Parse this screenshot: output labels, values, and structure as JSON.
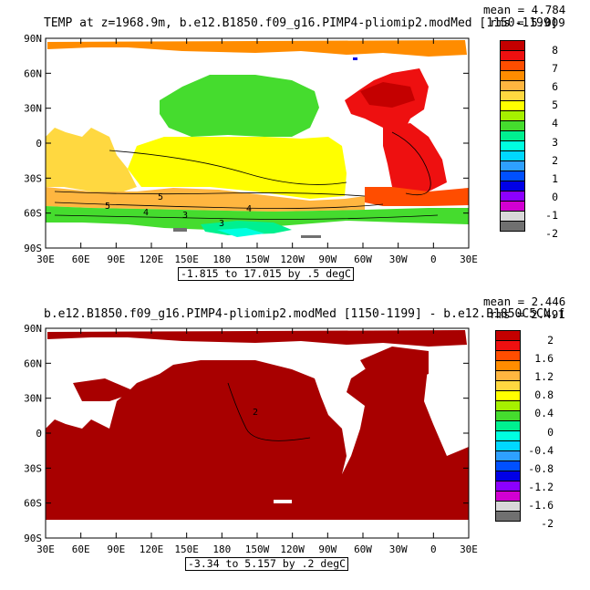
{
  "panels": [
    {
      "id": "temp-panel",
      "title": "TEMP at z=1968.9m, b.e12.B1850.f09_g16.PIMP4-pliomip2.modMed [1150-1199]",
      "mean_label": "mean = 4.784",
      "rms_label": "rms = 5.009",
      "range_label": "-1.815 to 17.015 by .5 degC",
      "legend": {
        "labels": [
          "8",
          "7",
          "6",
          "5",
          "4",
          "3",
          "2",
          "1",
          "0",
          "-1",
          "-2"
        ],
        "colors": [
          "#c40000",
          "#ee1010",
          "#ff4d00",
          "#ff8c00",
          "#ffb640",
          "#ffd840",
          "#ffff00",
          "#a6f000",
          "#45dc2e",
          "#00f090",
          "#00ffe0",
          "#00d8ff",
          "#2ea0ff",
          "#0050ff",
          "#0000e6",
          "#8c00ff",
          "#d200d2",
          "#d8d8d8",
          "#707070"
        ]
      },
      "contour_labels": [
        "5",
        "5",
        "4",
        "3",
        "4",
        "3"
      ]
    },
    {
      "id": "diff-panel",
      "title": "b.e12.B1850.f09_g16.PIMP4-pliomip2.modMed [1150-1199] - b.e12.B1850C5CN.f",
      "mean_label": "mean = 2.446",
      "rms_label": "rms = 2.491",
      "range_label": "-3.34 to 5.157 by .2 degC",
      "legend": {
        "labels": [
          "2",
          "1.6",
          "1.2",
          "0.8",
          "0.4",
          "0",
          "-0.4",
          "-0.8",
          "-1.2",
          "-1.6",
          "-2"
        ],
        "colors": [
          "#c40000",
          "#ee1010",
          "#ff4d00",
          "#ff8c00",
          "#ffb640",
          "#ffd840",
          "#ffff00",
          "#a6f000",
          "#45dc2e",
          "#00f090",
          "#00ffe0",
          "#00d8ff",
          "#2ea0ff",
          "#0050ff",
          "#0000e6",
          "#8c00ff",
          "#d200d2",
          "#d8d8d8",
          "#707070"
        ]
      },
      "contour_labels": [
        "2"
      ]
    }
  ],
  "axes": {
    "lat_labels": [
      "90N",
      "60N",
      "30N",
      "0",
      "30S",
      "60S",
      "90S"
    ],
    "lon_labels": [
      "30E",
      "60E",
      "90E",
      "120E",
      "150E",
      "180",
      "150W",
      "120W",
      "90W",
      "60W",
      "30W",
      "0",
      "30E"
    ]
  },
  "palette": {
    "land": "#ffffff",
    "ocean_diff": "#a80000"
  }
}
